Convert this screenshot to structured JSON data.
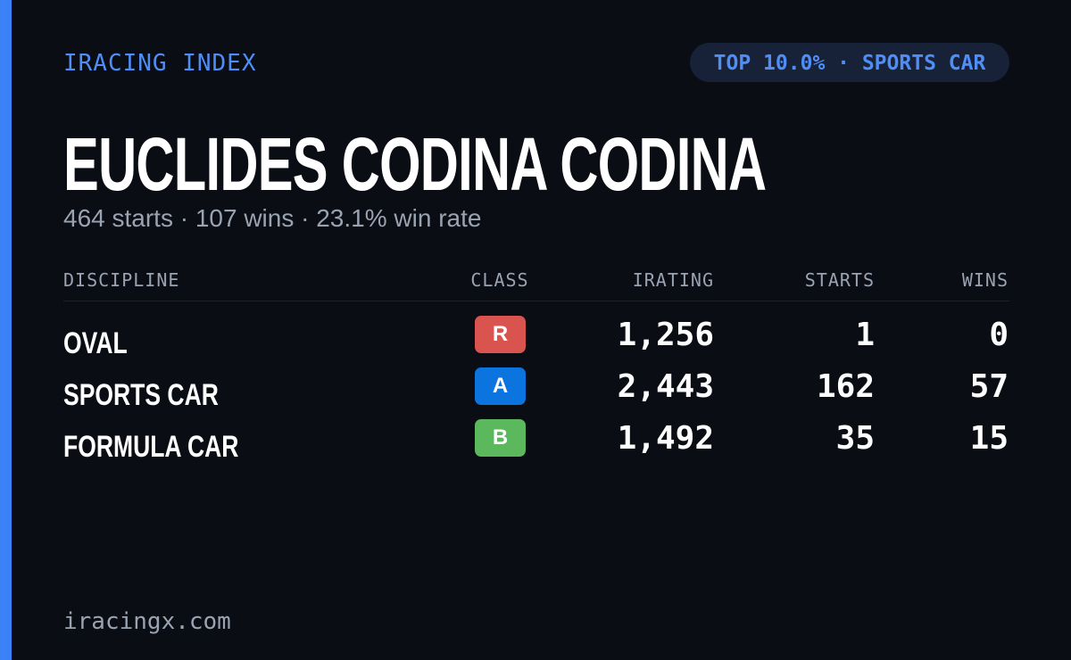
{
  "header": {
    "brand": "IRACING INDEX",
    "badge": "TOP 10.0% · SPORTS CAR"
  },
  "profile": {
    "name": "EUCLIDES CODINA CODINA",
    "summary": "464 starts · 107 wins · 23.1% win rate"
  },
  "table": {
    "columns": [
      "DISCIPLINE",
      "CLASS",
      "IRATING",
      "STARTS",
      "WINS"
    ],
    "rows": [
      {
        "discipline": "OVAL",
        "class": "R",
        "class_color": "#d9534f",
        "irating": "1,256",
        "starts": "1",
        "wins": "0"
      },
      {
        "discipline": "SPORTS CAR",
        "class": "A",
        "class_color": "#0b74de",
        "irating": "2,443",
        "starts": "162",
        "wins": "57"
      },
      {
        "discipline": "FORMULA CAR",
        "class": "B",
        "class_color": "#5cb85c",
        "irating": "1,492",
        "starts": "35",
        "wins": "15"
      }
    ]
  },
  "footer": {
    "url": "iracingx.com"
  }
}
